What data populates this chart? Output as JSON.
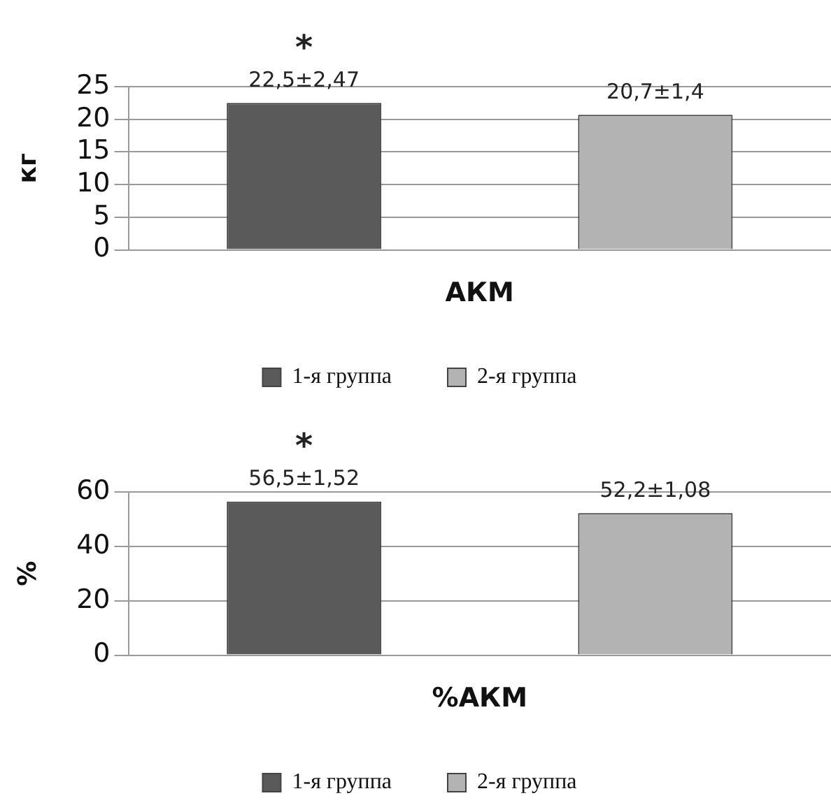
{
  "chart_data": [
    {
      "type": "bar",
      "categories": [
        null
      ],
      "xlabel": "АКМ",
      "ylabel": "кг",
      "ylim": [
        0,
        25
      ],
      "yticks": [
        0,
        5,
        10,
        15,
        20,
        25
      ],
      "grid": "y",
      "legend": "bottom",
      "annotations": [
        "*"
      ],
      "series": [
        {
          "name": "1-я группа",
          "color": "#5a5a5a",
          "values": [
            22.5
          ],
          "value_labels": [
            "22,5±2,47"
          ]
        },
        {
          "name": "2-я группа",
          "color": "#b3b3b3",
          "values": [
            20.7
          ],
          "value_labels": [
            "20,7±1,4"
          ]
        }
      ]
    },
    {
      "type": "bar",
      "categories": [
        null
      ],
      "xlabel": "%АКМ",
      "ylabel": "%",
      "ylim": [
        0,
        60
      ],
      "yticks": [
        0,
        20,
        40,
        60
      ],
      "grid": "y",
      "legend": "bottom",
      "annotations": [
        "*"
      ],
      "series": [
        {
          "name": "1-я группа",
          "color": "#5a5a5a",
          "values": [
            56.5
          ],
          "value_labels": [
            "56,5±1,52"
          ]
        },
        {
          "name": "2-я группа",
          "color": "#b3b3b3",
          "values": [
            52.2
          ],
          "value_labels": [
            "52,2±1,08"
          ]
        }
      ]
    }
  ]
}
